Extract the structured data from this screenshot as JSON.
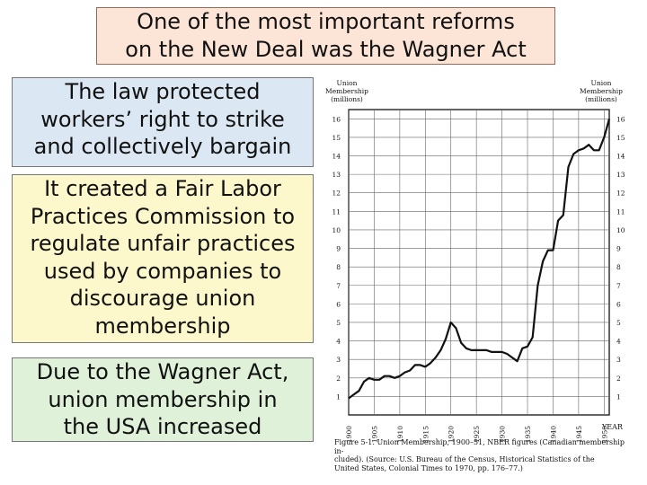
{
  "slide": {
    "title_lines": [
      "One of the most important reforms",
      "on the New Deal was the Wagner Act"
    ],
    "box1_lines": [
      "The law protected",
      "workers’ right to strike",
      "and collectively bargain"
    ],
    "box2_lines": [
      "It created a Fair Labor",
      "Practices Commission to",
      "regulate unfair practices",
      "used by companies to",
      "discourage union",
      "membership"
    ],
    "box3_lines": [
      "Due to the Wagner Act,",
      "union membership in",
      "the USA increased"
    ],
    "colors": {
      "title_bg": "#fce4d6",
      "box1_bg": "#dbe7f2",
      "box2_bg": "#fdf8cc",
      "box3_bg": "#dff1d8"
    }
  },
  "chart_data": {
    "type": "line",
    "left_axis_label_lines": [
      "Union",
      "Membership",
      "(millions)"
    ],
    "right_axis_label_lines": [
      "Union",
      "Membership",
      "(millions)"
    ],
    "xlabel": "YEAR",
    "x_ticks": [
      "1900",
      "1905",
      "1910",
      "1915",
      "1920",
      "1925",
      "1930",
      "1935",
      "1940",
      "1945",
      "1950"
    ],
    "y_ticks": [
      "1",
      "2",
      "3",
      "4",
      "5",
      "6",
      "7",
      "8",
      "9",
      "10",
      "11",
      "12",
      "13",
      "14",
      "15",
      "16"
    ],
    "xlim": [
      1900,
      1951
    ],
    "ylim": [
      0,
      16.5
    ],
    "grid": true,
    "series": [
      {
        "x": [
          1900,
          1901,
          1902,
          1903,
          1904,
          1905,
          1906,
          1907,
          1908,
          1909,
          1910,
          1911,
          1912,
          1913,
          1914,
          1915,
          1916,
          1917,
          1918,
          1919,
          1920,
          1921,
          1922,
          1923,
          1924,
          1925,
          1926,
          1927,
          1928,
          1929,
          1930,
          1931,
          1932,
          1933,
          1934,
          1935,
          1936,
          1937,
          1938,
          1939,
          1940,
          1941,
          1942,
          1943,
          1944,
          1945,
          1946,
          1947,
          1948,
          1949,
          1950,
          1951
        ],
        "values": [
          0.9,
          1.1,
          1.3,
          1.8,
          2.0,
          1.9,
          1.9,
          2.1,
          2.1,
          2.0,
          2.1,
          2.3,
          2.4,
          2.7,
          2.7,
          2.6,
          2.8,
          3.1,
          3.5,
          4.1,
          5.0,
          4.7,
          3.9,
          3.6,
          3.5,
          3.5,
          3.5,
          3.5,
          3.4,
          3.4,
          3.4,
          3.3,
          3.1,
          2.9,
          3.6,
          3.7,
          4.2,
          7.0,
          8.3,
          8.9,
          8.9,
          10.5,
          10.8,
          13.4,
          14.1,
          14.3,
          14.4,
          14.6,
          14.3,
          14.3,
          15.0,
          16.0
        ]
      }
    ]
  },
  "figure_caption": {
    "lines": [
      "Figure 5-1. Union Membership, 1900–51, NBER figures (Canadian membership in-",
      "cluded). (Source: U.S. Bureau of the Census, Historical Statistics of the",
      "United States, Colonial Times to 1970, pp. 176–77.)"
    ]
  }
}
